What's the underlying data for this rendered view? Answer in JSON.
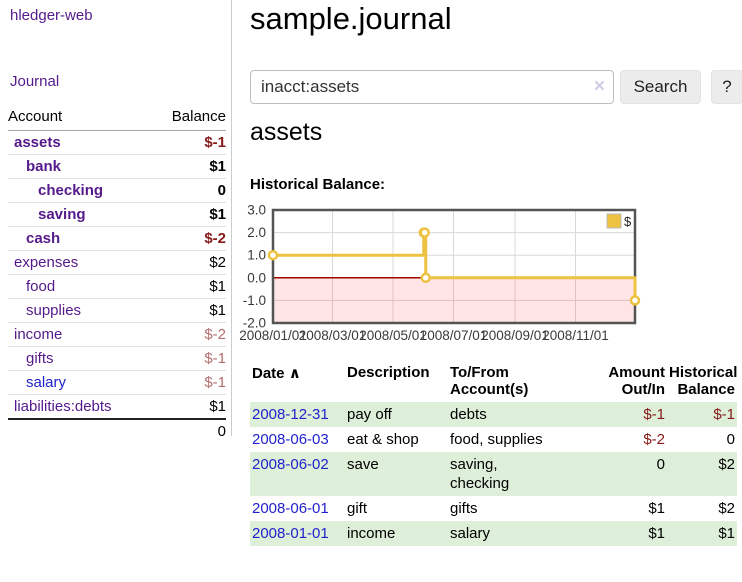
{
  "app": {
    "brand": "hledger-web",
    "nav_journal": "Journal"
  },
  "page": {
    "title": "sample.journal",
    "account_heading": "assets",
    "chart_label": "Historical Balance:"
  },
  "search": {
    "value": "inacct:assets",
    "clear_icon": "×",
    "button": "Search",
    "help_button": "?"
  },
  "sidebar_table": {
    "headers": {
      "account": "Account",
      "balance": "Balance"
    },
    "rows": [
      {
        "label": "assets",
        "level": 1,
        "bold": true,
        "color": "purple",
        "balance": "$-1",
        "bal_class": "neg",
        "bal_bold": true
      },
      {
        "label": "bank",
        "level": 2,
        "bold": true,
        "color": "purple",
        "balance": "$1",
        "bal_class": "",
        "bal_bold": true
      },
      {
        "label": "checking",
        "level": 3,
        "bold": true,
        "color": "purple",
        "balance": "0",
        "bal_class": "",
        "bal_bold": true
      },
      {
        "label": "saving",
        "level": 3,
        "bold": true,
        "color": "purple",
        "balance": "$1",
        "bal_class": "",
        "bal_bold": true
      },
      {
        "label": "cash",
        "level": 2,
        "bold": true,
        "color": "purple",
        "balance": "$-2",
        "bal_class": "neg",
        "bal_bold": true
      },
      {
        "label": "expenses",
        "level": 1,
        "bold": false,
        "color": "purple",
        "balance": "$2",
        "bal_class": "",
        "bal_bold": false
      },
      {
        "label": "food",
        "level": 2,
        "bold": false,
        "color": "purple",
        "balance": "$1",
        "bal_class": "",
        "bal_bold": false
      },
      {
        "label": "supplies",
        "level": 2,
        "bold": false,
        "color": "purple",
        "balance": "$1",
        "bal_class": "",
        "bal_bold": false
      },
      {
        "label": "income",
        "level": 1,
        "bold": false,
        "color": "purple",
        "balance": "$-2",
        "bal_class": "neg-soft",
        "bal_bold": false
      },
      {
        "label": "gifts",
        "level": 2,
        "bold": false,
        "color": "purple",
        "balance": "$-1",
        "bal_class": "neg-soft",
        "bal_bold": false
      },
      {
        "label": "salary",
        "level": 2,
        "bold": false,
        "color": "blue",
        "balance": "$-1",
        "bal_class": "neg-soft",
        "bal_bold": false
      },
      {
        "label": "liabilities:debts",
        "level": 1,
        "bold": false,
        "color": "purple",
        "balance": "$1",
        "bal_class": "",
        "bal_bold": false
      }
    ],
    "total": "0"
  },
  "register": {
    "headers": {
      "date": "Date",
      "sort_arrow": "∧",
      "description": "Description",
      "accounts": "To/From\nAccount(s)",
      "amount": "Amount\nOut/In",
      "balance": "Historical\nBalance"
    },
    "rows": [
      {
        "date": "2008-12-31",
        "description": "pay off",
        "accounts": "debts",
        "amount": "$-1",
        "amount_class": "neg",
        "balance": "$-1",
        "balance_class": "neg",
        "shaded": true
      },
      {
        "date": "2008-06-03",
        "description": "eat & shop",
        "accounts": "food, supplies",
        "amount": "$-2",
        "amount_class": "neg",
        "balance": "0",
        "balance_class": "",
        "shaded": false
      },
      {
        "date": "2008-06-02",
        "description": "save",
        "accounts": "saving,\nchecking",
        "amount": "0",
        "amount_class": "",
        "balance": "$2",
        "balance_class": "",
        "shaded": true
      },
      {
        "date": "2008-06-01",
        "description": "gift",
        "accounts": "gifts",
        "amount": "$1",
        "amount_class": "",
        "balance": "$2",
        "balance_class": "",
        "shaded": false
      },
      {
        "date": "2008-01-01",
        "description": "income",
        "accounts": "salary",
        "amount": "$1",
        "amount_class": "",
        "balance": "$1",
        "balance_class": "",
        "shaded": true
      }
    ]
  },
  "chart_data": {
    "type": "line",
    "title": "Historical Balance",
    "series": [
      {
        "name": "$",
        "step": true,
        "points": [
          [
            "2008-01-01",
            1
          ],
          [
            "2008-06-01",
            2
          ],
          [
            "2008-06-02",
            2
          ],
          [
            "2008-06-03",
            0
          ],
          [
            "2008-12-31",
            -1
          ]
        ]
      }
    ],
    "x_range": [
      "2008-01-01",
      "2008-12-31"
    ],
    "x_ticks": [
      {
        "date": "2008-01-01",
        "label": "2008/01/01"
      },
      {
        "date": "2008-03-01",
        "label": "2008/03/01"
      },
      {
        "date": "2008-05-01",
        "label": "2008/05/01"
      },
      {
        "date": "2008-07-01",
        "label": "2008/07/01"
      },
      {
        "date": "2008-09-01",
        "label": "2008/09/01"
      },
      {
        "date": "2008-11-01",
        "label": "2008/11/01"
      }
    ],
    "y_ticks": [
      "3.0",
      "2.0",
      "1.0",
      "0.0",
      "-1.0",
      "-2.0"
    ],
    "ylim": [
      -2,
      3
    ],
    "grid": true,
    "legend": {
      "label": "$",
      "position": "top-right"
    },
    "colors": {
      "line": "#edc240",
      "marker_fill": "#ffffff",
      "negative_region": "rgba(255,0,0,0.10)",
      "zero_line": "#a00000",
      "grid": "#d8d8d8",
      "border": "#545454",
      "tick_text": "#3a3a3a"
    }
  }
}
